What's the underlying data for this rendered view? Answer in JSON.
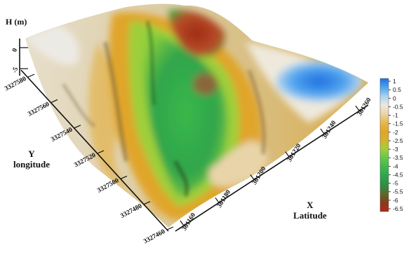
{
  "chart_data": {
    "type": "surface3d",
    "z_axis": {
      "title": "H (m)",
      "ticks": [
        "0",
        "-5"
      ]
    },
    "y_axis": {
      "title": "Y",
      "subtitle": "longitude",
      "ticks": [
        "3327460",
        "3327480",
        "3327500",
        "3327520",
        "3327540",
        "3327560",
        "3327580"
      ]
    },
    "x_axis": {
      "title": "X",
      "subtitle": "Latitude",
      "ticks": [
        "361160",
        "361180",
        "361200",
        "361220",
        "361240",
        "361260"
      ]
    },
    "colorbar": {
      "ticks": [
        "1",
        "0.5",
        "0",
        "-0.5",
        "-1",
        "-1.5",
        "-2",
        "-2.5",
        "-3",
        "-3.5",
        "-4",
        "-4.5",
        "-5",
        "-5.5",
        "-6",
        "-6.5"
      ],
      "range": [
        -6.5,
        1
      ],
      "stops": [
        "#1f6fe0",
        "#4ea3ee",
        "#a9d2f0",
        "#efe9dc",
        "#e8d4a8",
        "#e6b84a",
        "#e0a52a",
        "#d4b32c",
        "#9fcf3a",
        "#64c64a",
        "#3fb84e",
        "#2fa54c",
        "#2d8f45",
        "#5a6a2a",
        "#8a3a1a",
        "#b02a16"
      ]
    },
    "surface_colors": {
      "low_depression": "#2a9f4a",
      "deep_pit": "#a83218",
      "rim": "#e0a52a",
      "high_flat": "#ece6d8",
      "mound": "#2f7fe3"
    }
  }
}
